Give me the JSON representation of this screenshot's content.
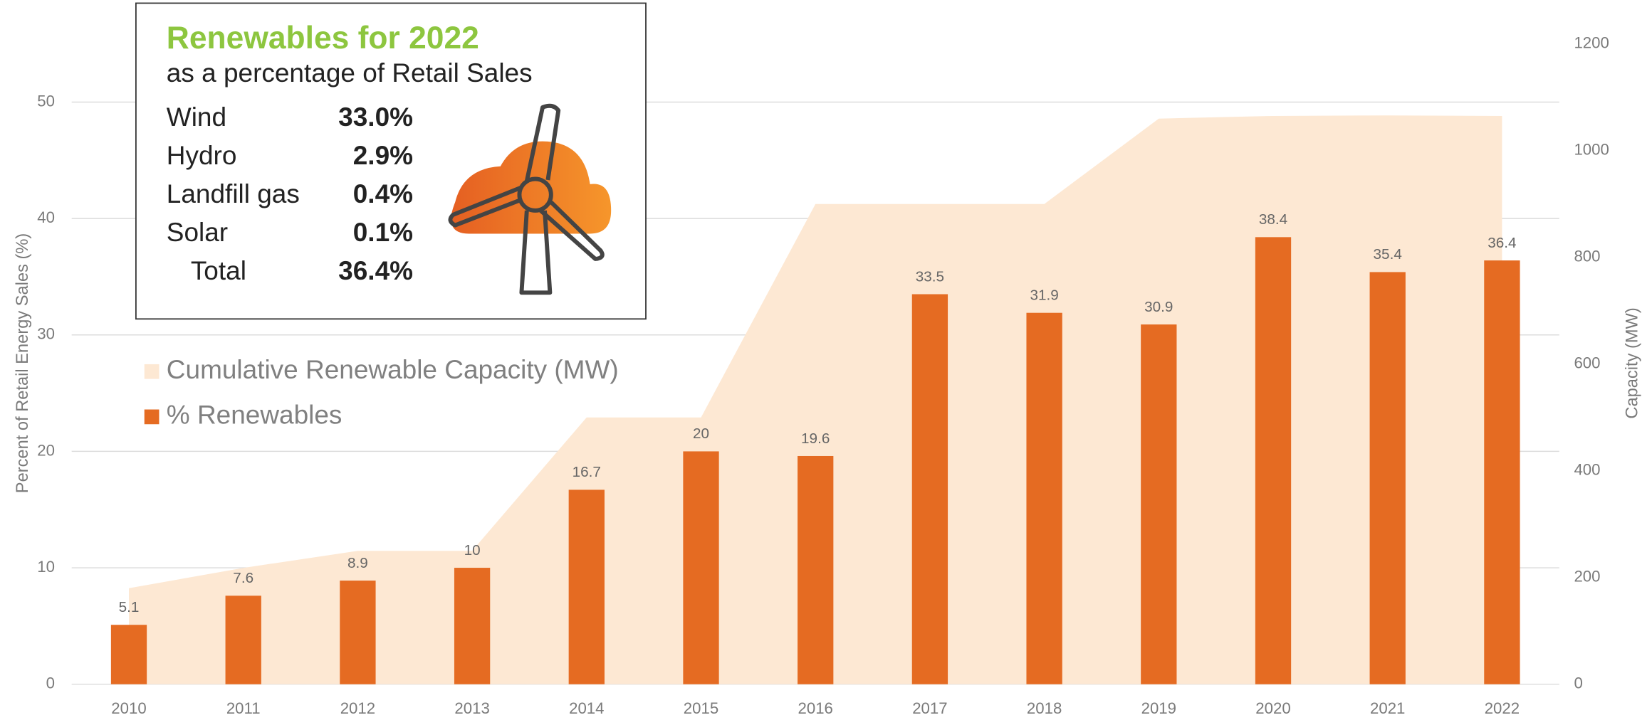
{
  "chart_data": {
    "type": "bar",
    "categories": [
      "2010",
      "2011",
      "2012",
      "2013",
      "2014",
      "2015",
      "2016",
      "2017",
      "2018",
      "2019",
      "2020",
      "2021",
      "2022"
    ],
    "series": [
      {
        "name": "Cumulative Renewable Capacity (MW)",
        "type": "area",
        "axis": "y2",
        "color": "#fde8d3",
        "values": [
          180,
          218,
          250,
          250,
          500,
          500,
          900,
          900,
          900,
          1060,
          1065,
          1066,
          1065
        ]
      },
      {
        "name": "% Renewables",
        "type": "bar",
        "color": "#e56b22",
        "values": [
          5.1,
          7.6,
          8.9,
          10,
          16.7,
          20,
          19.6,
          33.5,
          31.9,
          30.9,
          38.4,
          35.4,
          36.4
        ]
      }
    ],
    "ylabel": "Percent of Retail Energy Sales (%)",
    "y2label": "Capacity (MW)",
    "ylim": [
      0,
      55
    ],
    "yticks": [
      0,
      10,
      20,
      30,
      40,
      50
    ],
    "y2lim": [
      0,
      1200
    ],
    "y2ticks": [
      0,
      200,
      400,
      600,
      800,
      1000,
      1200
    ],
    "grid": true,
    "inset": {
      "title": "Renewables for 2022",
      "subtitle": "as a percentage of Retail Sales",
      "rows": [
        [
          "Wind",
          "33.0%"
        ],
        [
          "Hydro",
          "2.9%"
        ],
        [
          "Landfill gas",
          "0.4%"
        ],
        [
          "Solar",
          "0.1%"
        ],
        [
          "Total",
          "36.4%"
        ]
      ]
    }
  }
}
